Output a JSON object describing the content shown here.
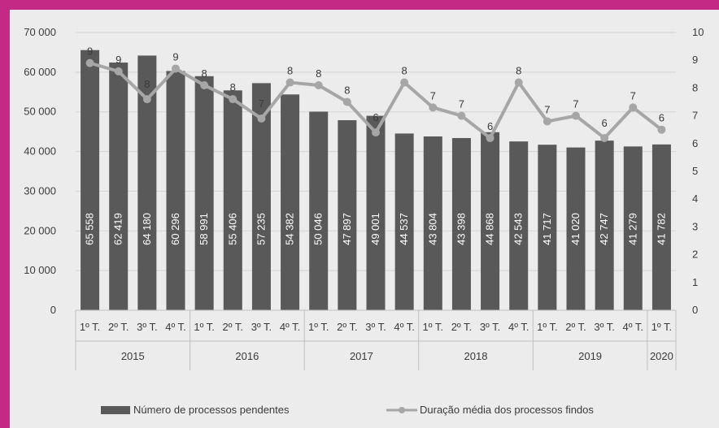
{
  "chart_data": {
    "type": "bar",
    "categories": [
      "1º T.",
      "2º T.",
      "3º T.",
      "4º T.",
      "1º T.",
      "2º T.",
      "3º T.",
      "4º T.",
      "1º T.",
      "2º T.",
      "3º T.",
      "4º T.",
      "1º T.",
      "2º T.",
      "3º T.",
      "4º T.",
      "1º T.",
      "2º T.",
      "3º T.",
      "4º T.",
      "1º T."
    ],
    "years": [
      {
        "label": "2015",
        "count": 4
      },
      {
        "label": "2016",
        "count": 4
      },
      {
        "label": "2017",
        "count": 4
      },
      {
        "label": "2018",
        "count": 4
      },
      {
        "label": "2019",
        "count": 4
      },
      {
        "label": "2020",
        "count": 1
      }
    ],
    "series": [
      {
        "name": "Número de processos pendentes",
        "type": "bar",
        "axis": "left",
        "color": "#595959",
        "values": [
          65558,
          62419,
          64180,
          60296,
          58991,
          55406,
          57235,
          54382,
          50046,
          47897,
          49001,
          44537,
          43804,
          43398,
          44868,
          42543,
          41717,
          41020,
          42747,
          41279,
          41782
        ],
        "labels": [
          "65 558",
          "62 419",
          "64 180",
          "60 296",
          "58 991",
          "55 406",
          "57 235",
          "54 382",
          "50 046",
          "47 897",
          "49 001",
          "44 537",
          "43 804",
          "43 398",
          "44 868",
          "42 543",
          "41 717",
          "41 020",
          "42 747",
          "41 279",
          "41 782"
        ]
      },
      {
        "name": "Duração média dos processos findos",
        "type": "line",
        "axis": "right",
        "color": "#a6a6a6",
        "values": [
          8.9,
          8.6,
          7.6,
          8.7,
          8.1,
          7.6,
          6.9,
          8.2,
          8.1,
          7.5,
          6.4,
          8.2,
          7.3,
          7.0,
          6.2,
          8.2,
          6.8,
          7.0,
          6.2,
          7.3,
          6.5
        ],
        "labels": [
          "9",
          "9",
          "8",
          "9",
          "8",
          "8",
          "7",
          "8",
          "8",
          "8",
          "6",
          "8",
          "7",
          "7",
          "6",
          "8",
          "7",
          "7",
          "6",
          "7",
          "6"
        ]
      }
    ],
    "y_left": {
      "ylim": [
        0,
        70000
      ],
      "ticks": [
        "0",
        "10 000",
        "20 000",
        "30 000",
        "40 000",
        "50 000",
        "60 000",
        "70 000"
      ]
    },
    "y_right": {
      "ylim": [
        0,
        10
      ],
      "ticks": [
        "0",
        "1",
        "2",
        "3",
        "4",
        "5",
        "6",
        "7",
        "8",
        "9",
        "10"
      ]
    },
    "grid": true,
    "legend_position": "bottom"
  }
}
